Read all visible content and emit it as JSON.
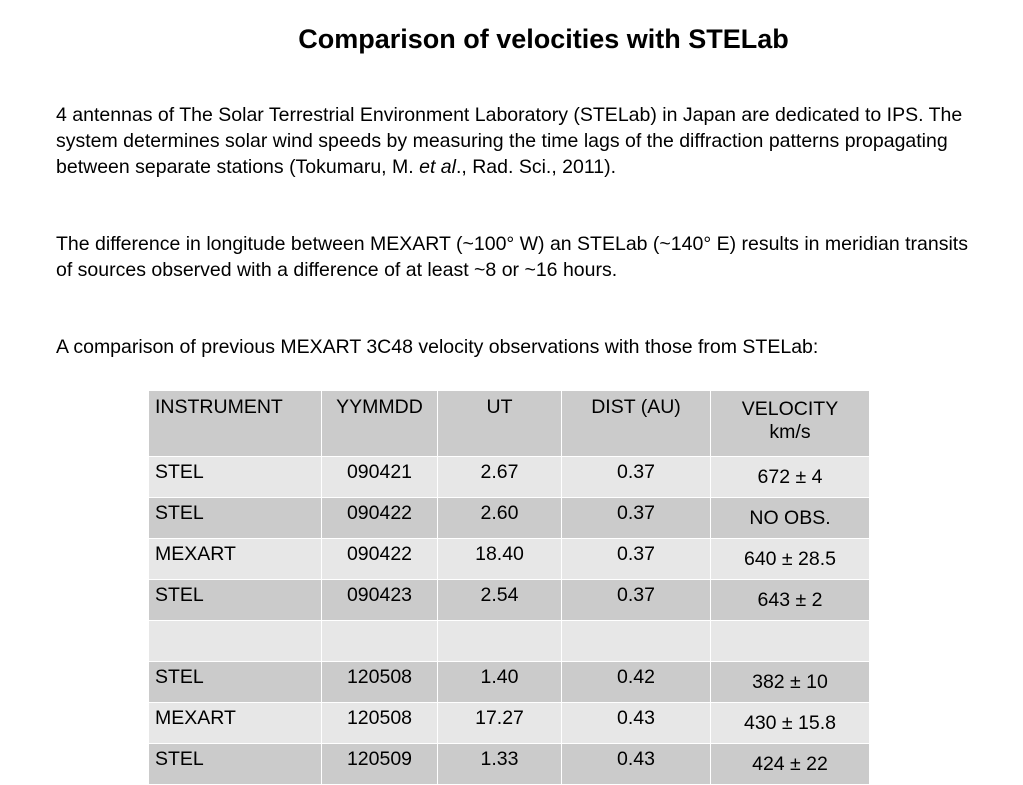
{
  "title": "Comparison of velocities with STELab",
  "paragraphs": {
    "p1_before_italic": "4 antennas of The Solar Terrestrial Environment Laboratory (STELab) in Japan are dedicated to IPS. The system determines solar wind speeds by measuring the time lags of the diffraction patterns propagating between separate stations (Tokumaru, M. ",
    "p1_italic": "et al",
    "p1_after_italic": "., Rad. Sci., 2011).",
    "p2": "The difference in longitude between MEXART (~100° W) an STELab (~140° E) results in meridian transits of sources observed with a difference of at least ~8 or ~16 hours.",
    "p3": "A comparison of previous MEXART 3C48 velocity observations with those from STELab:"
  },
  "table": {
    "headers": [
      "INSTRUMENT",
      "YYMMDD",
      "UT",
      "DIST (AU)",
      "VELOCITY",
      "km/s"
    ],
    "rows": [
      [
        "STEL",
        "090421",
        "2.67",
        "0.37",
        "672 ± 4"
      ],
      [
        "STEL",
        "090422",
        "2.60",
        "0.37",
        "NO OBS."
      ],
      [
        "MEXART",
        "090422",
        "18.40",
        "0.37",
        "640 ± 28.5"
      ],
      [
        "STEL",
        "090423",
        "2.54",
        "0.37",
        "643 ± 2"
      ],
      [
        "",
        "",
        "",
        "",
        ""
      ],
      [
        "STEL",
        "120508",
        "1.40",
        "0.42",
        "382 ± 10"
      ],
      [
        "MEXART",
        "120508",
        "17.27",
        "0.43",
        "430 ± 15.8"
      ],
      [
        "STEL",
        "120509",
        "1.33",
        "0.43",
        "424 ± 22"
      ]
    ]
  },
  "colors": {
    "header_row": "#cbcbcb",
    "dark_row": "#cbcbcb",
    "light_row": "#e7e7e7"
  }
}
